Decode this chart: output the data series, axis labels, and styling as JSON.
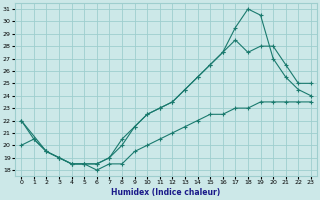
{
  "xlabel": "Humidex (Indice chaleur)",
  "bg_color": "#cce8e8",
  "grid_color": "#9ecece",
  "line_color": "#1a7a6e",
  "xlim": [
    -0.5,
    23.5
  ],
  "ylim": [
    17.5,
    31.5
  ],
  "xticks": [
    0,
    1,
    2,
    3,
    4,
    5,
    6,
    7,
    8,
    9,
    10,
    11,
    12,
    13,
    14,
    15,
    16,
    17,
    18,
    19,
    20,
    21,
    22,
    23
  ],
  "yticks": [
    18,
    19,
    20,
    21,
    22,
    23,
    24,
    25,
    26,
    27,
    28,
    29,
    30,
    31
  ],
  "line1_x": [
    0,
    1,
    2,
    3,
    4,
    5,
    6,
    7,
    8,
    9,
    10,
    11,
    12,
    13,
    14,
    15,
    16,
    17,
    18,
    19,
    20,
    21,
    22,
    23
  ],
  "line1_y": [
    20.0,
    20.5,
    19.5,
    19.0,
    18.5,
    18.5,
    18.0,
    18.5,
    18.5,
    19.5,
    20.0,
    20.5,
    21.0,
    21.5,
    22.0,
    22.5,
    22.5,
    23.0,
    23.0,
    23.5,
    23.5,
    23.5,
    23.5,
    23.5
  ],
  "line2_x": [
    0,
    2,
    3,
    4,
    5,
    6,
    7,
    8,
    9,
    10,
    11,
    12,
    13,
    14,
    15,
    16,
    17,
    18,
    19,
    20,
    21,
    22,
    23
  ],
  "line2_y": [
    22.0,
    19.5,
    19.0,
    18.5,
    18.5,
    18.5,
    19.0,
    20.5,
    21.5,
    22.5,
    23.0,
    23.5,
    24.5,
    25.5,
    26.5,
    27.5,
    28.5,
    27.5,
    28.0,
    28.0,
    26.5,
    25.0,
    25.0
  ],
  "line3_x": [
    0,
    1,
    2,
    3,
    4,
    5,
    6,
    7,
    8,
    9,
    10,
    11,
    12,
    13,
    14,
    15,
    16,
    17,
    18,
    19,
    20,
    21,
    22,
    23
  ],
  "line3_y": [
    22.0,
    20.5,
    19.5,
    19.0,
    18.5,
    18.5,
    18.5,
    19.0,
    20.0,
    21.5,
    22.5,
    23.0,
    23.5,
    24.5,
    25.5,
    26.5,
    27.5,
    29.5,
    31.0,
    30.5,
    27.0,
    25.5,
    24.5,
    24.0
  ],
  "marker": "+"
}
